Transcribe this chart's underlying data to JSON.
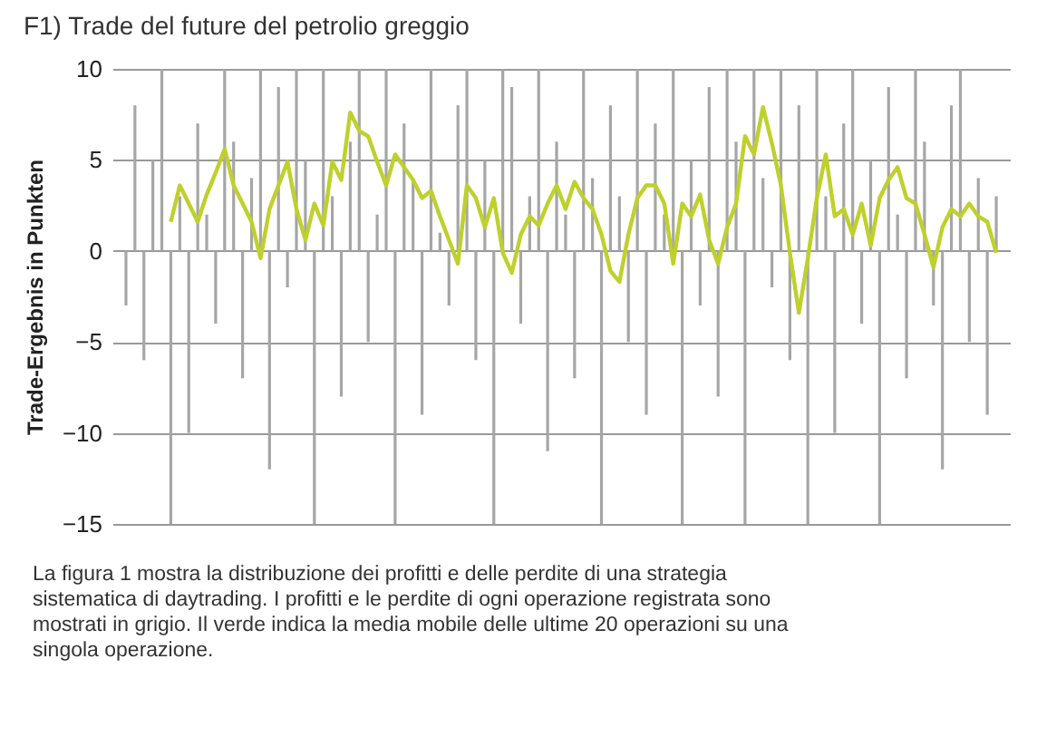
{
  "chart_data": {
    "type": "bar",
    "title": "F1) Trade del future del petrolio greggio",
    "ylabel": "Trade-Ergebnis in Punkten",
    "annotations": [
      "La figura 1 mostra la distribuzione dei profitti e delle perdite di una strategia sistematica di daytrading. I profitti e le perdite di ogni operazione registrata sono mostrati in grigio. Il verde indica la media mobile delle ultime 20 operazioni su una singola operazione."
    ],
    "categories": [
      null,
      null,
      null,
      null,
      null,
      null,
      null,
      null,
      null,
      null,
      null,
      null,
      null,
      null,
      null,
      null,
      null,
      null,
      null,
      null,
      null,
      null,
      null,
      null,
      null,
      null,
      null,
      null,
      null,
      null,
      null,
      null,
      null,
      null,
      null,
      null,
      null,
      null,
      null,
      null,
      null,
      null,
      null,
      null,
      null,
      null,
      null,
      null,
      null,
      null,
      null,
      null,
      null,
      null,
      null,
      null,
      null,
      null,
      null,
      null,
      null,
      null,
      null,
      null,
      null,
      null,
      null,
      null,
      null,
      null,
      null,
      null,
      null,
      null,
      null,
      null,
      null,
      null,
      null,
      null,
      null,
      null,
      null,
      null,
      null,
      null,
      null,
      null,
      null,
      null,
      null,
      null,
      null,
      null,
      null,
      null,
      null,
      null
    ],
    "series": [
      {
        "color": "#a6a6a6",
        "values": [
          -3,
          8,
          -6,
          5,
          10,
          -15,
          3,
          -10,
          7,
          2,
          -4,
          10,
          6,
          -7,
          4,
          10,
          -12,
          9,
          -2,
          10,
          5,
          -15,
          10,
          3,
          -8,
          6,
          10,
          -5,
          2,
          10,
          -15,
          7,
          4,
          -9,
          10,
          1,
          -3,
          8,
          10,
          -6,
          5,
          -15,
          10,
          9,
          -4,
          3,
          10,
          -11,
          6,
          2,
          -7,
          10,
          4,
          -15,
          8,
          3,
          -5,
          10,
          -9,
          7,
          2,
          10,
          -15,
          5,
          -3,
          9,
          -8,
          10,
          6,
          -15,
          10,
          4,
          -2,
          10,
          -6,
          8,
          -15,
          10,
          3,
          -10,
          7,
          10,
          -4,
          5,
          -15,
          9,
          2,
          -7,
          10,
          6,
          -3,
          -12,
          8,
          10,
          -5,
          4,
          -9,
          3
        ]
      },
      {
        "type": "line",
        "color": "#bfd02c",
        "values": [
          null,
          null,
          null,
          null,
          null,
          1.6,
          3.6,
          2.6,
          1.6,
          3.1,
          4.3,
          5.6,
          3.6,
          2.6,
          1.6,
          -0.4,
          2.3,
          3.6,
          4.9,
          2.3,
          0.6,
          2.6,
          1.4,
          4.9,
          3.9,
          7.6,
          6.6,
          6.3,
          4.9,
          3.6,
          5.3,
          4.6,
          3.9,
          2.9,
          3.3,
          1.9,
          0.6,
          -0.7,
          3.6,
          2.9,
          1.3,
          2.9,
          -0.1,
          -1.2,
          0.9,
          1.9,
          1.4,
          2.6,
          3.6,
          2.3,
          3.8,
          2.9,
          2.3,
          0.9,
          -1.1,
          -1.7,
          0.9,
          2.9,
          3.6,
          3.6,
          2.6,
          -0.7,
          2.6,
          1.9,
          3.1,
          0.6,
          -0.7,
          1.3,
          2.6,
          6.3,
          5.3,
          7.9,
          5.9,
          3.6,
          -0.1,
          -3.4,
          -0.4,
          2.9,
          5.3,
          1.9,
          2.3,
          0.9,
          2.6,
          0.3,
          2.9,
          3.9,
          4.6,
          2.9,
          2.6,
          0.9,
          -0.9,
          1.3,
          2.3,
          1.9,
          2.6,
          1.9,
          1.6,
          -0.1
        ]
      }
    ],
    "ylim": [
      -15,
      10
    ],
    "yticks": [
      -15,
      -10,
      -5,
      0,
      5,
      10
    ],
    "grid": "y",
    "tick_labels": "y",
    "line_style": "solid",
    "marker": "none"
  }
}
